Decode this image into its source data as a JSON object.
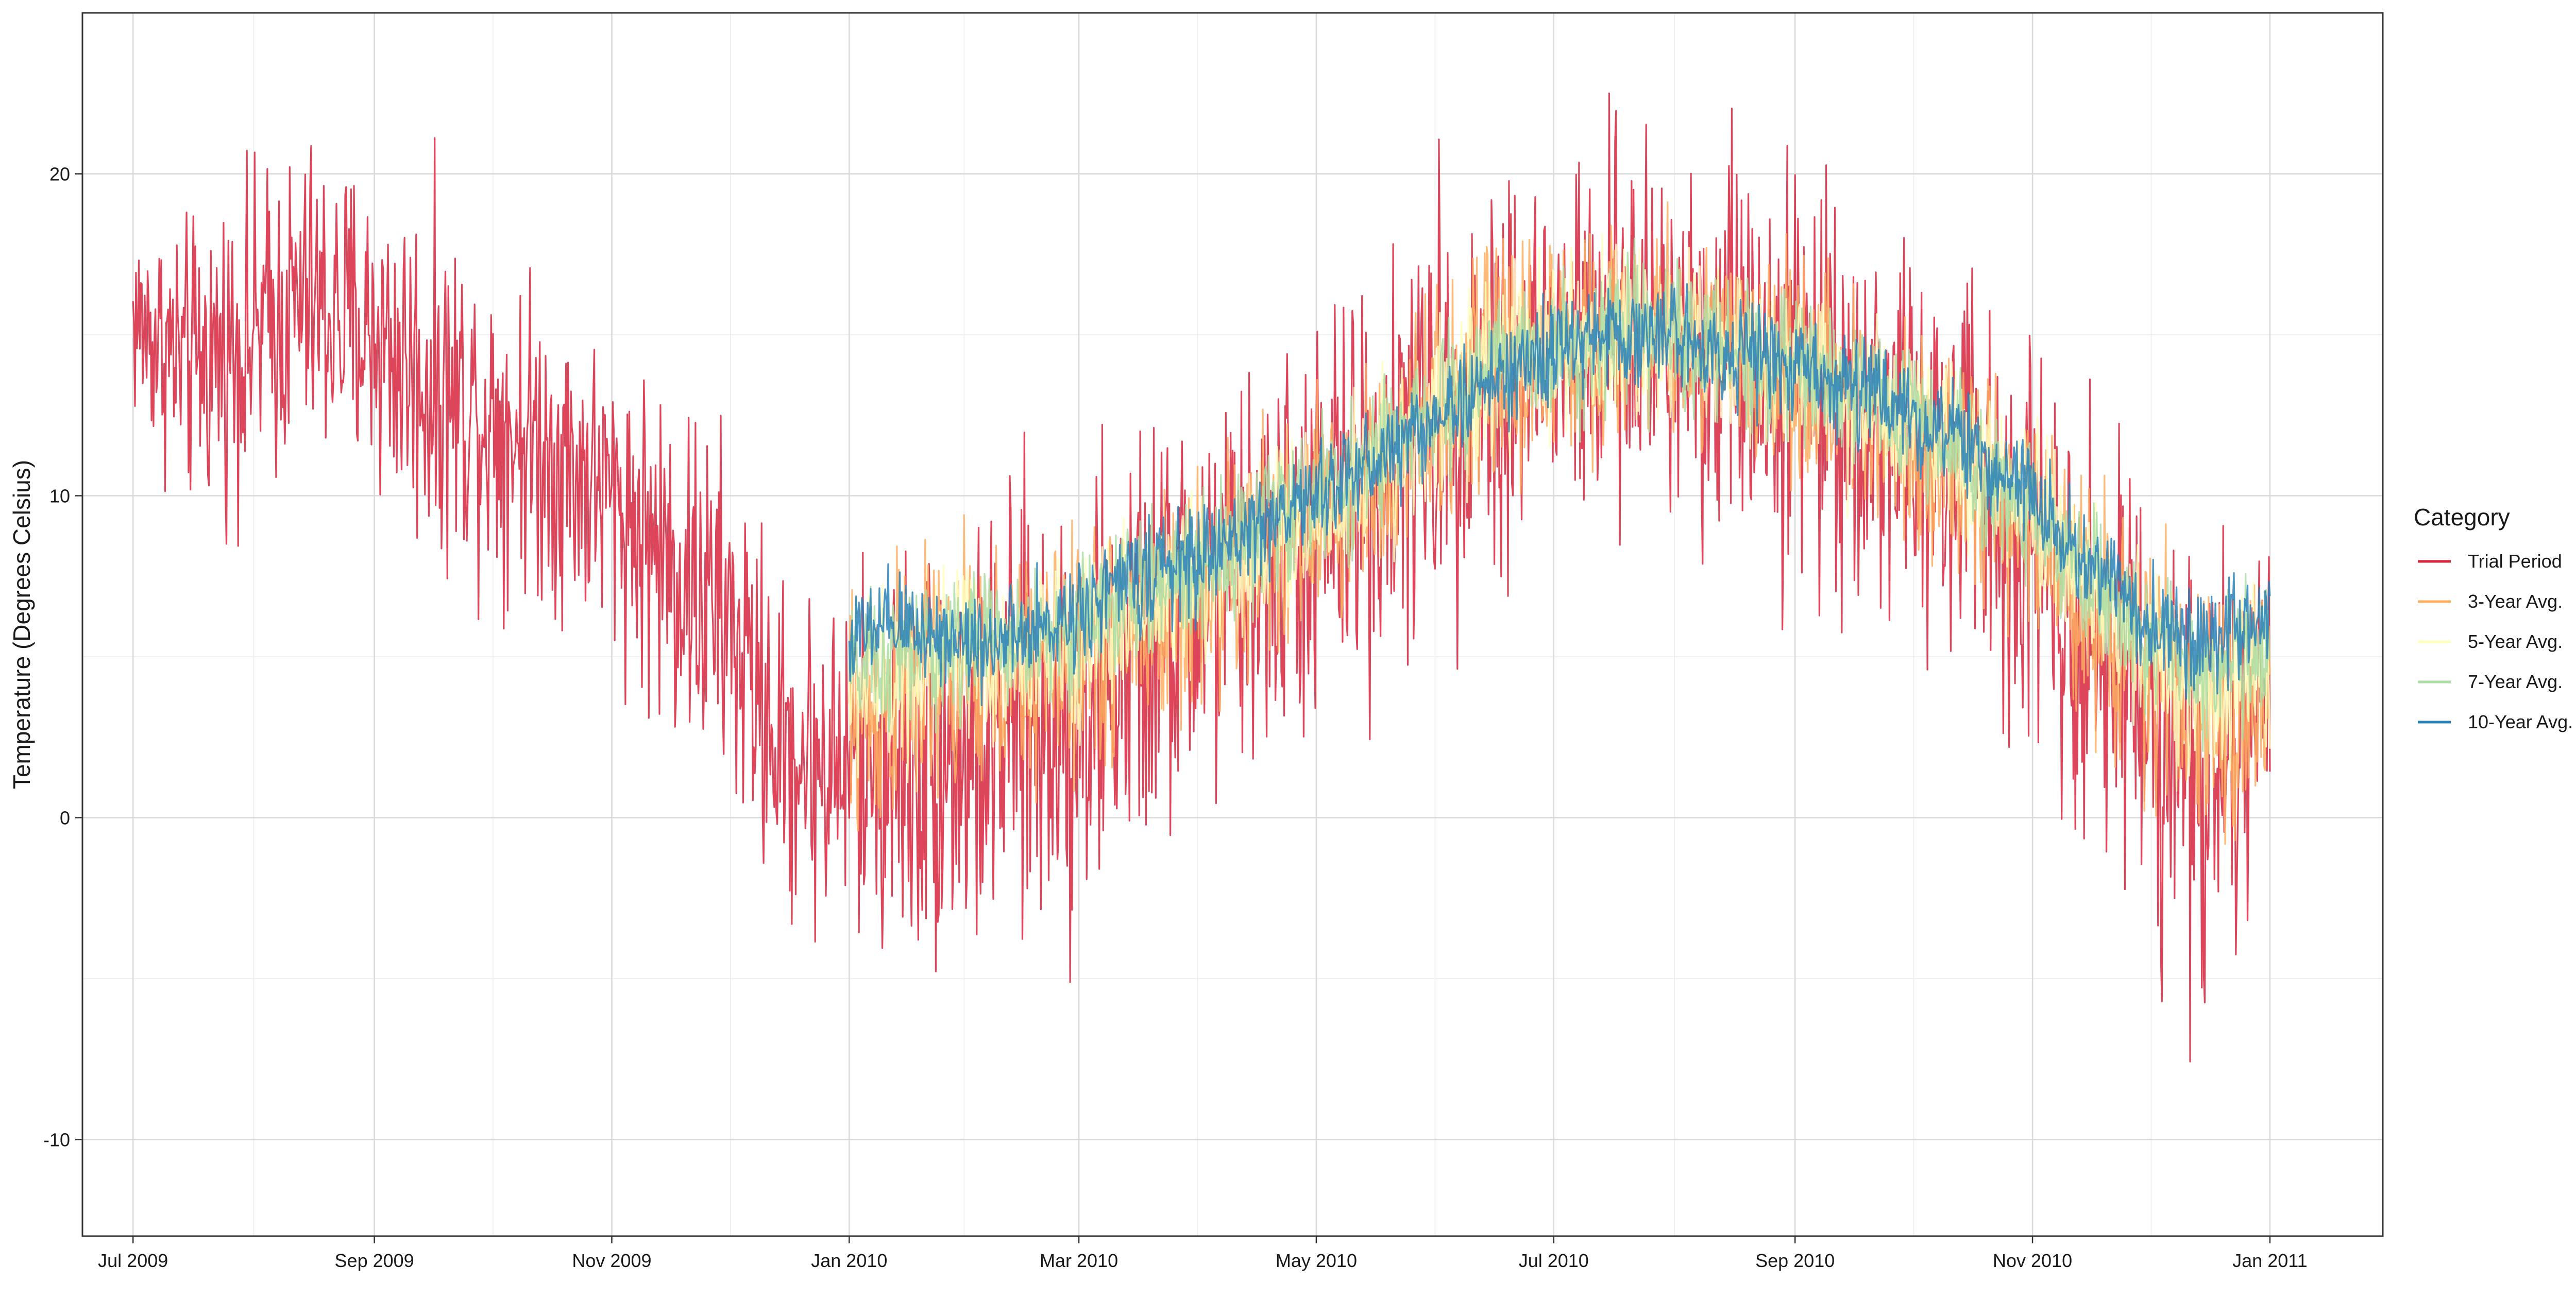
{
  "chart_data": {
    "type": "line",
    "title": "",
    "xlabel": "",
    "ylabel": "Temperature  (Degrees Celsius)",
    "x_range": [
      "2009-06-18",
      "2011-01-30"
    ],
    "ylim": [
      -13,
      25
    ],
    "y_ticks": [
      -10,
      0,
      10,
      20
    ],
    "x_ticks": [
      {
        "date": "2009-07-01",
        "label": "Jul 2009"
      },
      {
        "date": "2009-09-01",
        "label": "Sep 2009"
      },
      {
        "date": "2009-11-01",
        "label": "Nov 2009"
      },
      {
        "date": "2010-01-01",
        "label": "Jan 2010"
      },
      {
        "date": "2010-03-01",
        "label": "Mar 2010"
      },
      {
        "date": "2010-05-01",
        "label": "May 2010"
      },
      {
        "date": "2010-07-01",
        "label": "Jul 2010"
      },
      {
        "date": "2010-09-01",
        "label": "Sep 2010"
      },
      {
        "date": "2010-11-01",
        "label": "Nov 2010"
      },
      {
        "date": "2011-01-01",
        "label": "Jan 2011"
      }
    ],
    "grid": true,
    "legend": {
      "title": "Category",
      "position": "right"
    },
    "series": [
      {
        "name": "Trial Period",
        "color": "#D7263D",
        "x": [
          "2009-07-01",
          "2009-07-15",
          "2009-08-01",
          "2009-08-15",
          "2009-09-01",
          "2009-09-15",
          "2009-10-01",
          "2009-10-15",
          "2009-11-01",
          "2009-11-15",
          "2009-12-01",
          "2009-12-15",
          "2010-01-01",
          "2010-01-15",
          "2010-02-01",
          "2010-02-15",
          "2010-03-01",
          "2010-03-15",
          "2010-04-01",
          "2010-04-15",
          "2010-05-01",
          "2010-05-15",
          "2010-06-01",
          "2010-06-15",
          "2010-07-01",
          "2010-07-15",
          "2010-08-01",
          "2010-08-15",
          "2010-09-01",
          "2010-09-15",
          "2010-10-01",
          "2010-10-15",
          "2010-11-01",
          "2010-11-15",
          "2010-12-01",
          "2010-12-15",
          "2011-01-01"
        ],
        "center": [
          15.5,
          14,
          15,
          16,
          15,
          13.5,
          12.5,
          11.5,
          10,
          8,
          6,
          2,
          1.5,
          2,
          2,
          3,
          3.5,
          5,
          6.5,
          7.5,
          9,
          10.5,
          12.5,
          14,
          14.5,
          15,
          15,
          15,
          14,
          13,
          11.5,
          10.5,
          9,
          6,
          3.5,
          1,
          3
        ],
        "spread": [
          3,
          4,
          4.5,
          4.5,
          4.5,
          5,
          4.5,
          4.5,
          4,
          5,
          5,
          4.5,
          5,
          6,
          6,
          6.5,
          6.5,
          6,
          6,
          5.5,
          6,
          6,
          6,
          6,
          5.5,
          5.5,
          5.5,
          6,
          6,
          5.5,
          5.5,
          6,
          6,
          6,
          6,
          7,
          4
        ]
      },
      {
        "name": "3-Year Avg.",
        "color": "#FDAE61",
        "x": [
          "2010-01-01",
          "2010-01-15",
          "2010-02-01",
          "2010-02-15",
          "2010-03-01",
          "2010-03-15",
          "2010-04-01",
          "2010-04-15",
          "2010-05-01",
          "2010-05-15",
          "2010-06-01",
          "2010-06-15",
          "2010-07-01",
          "2010-07-15",
          "2010-08-01",
          "2010-08-15",
          "2010-09-01",
          "2010-09-15",
          "2010-10-01",
          "2010-10-15",
          "2010-11-01",
          "2010-11-15",
          "2010-12-01",
          "2010-12-15",
          "2011-01-01"
        ],
        "center": [
          3,
          4,
          4.5,
          4.5,
          5,
          6,
          7,
          8,
          9,
          10.5,
          12.5,
          14,
          14.5,
          15,
          15,
          14.5,
          14,
          13,
          12,
          10.5,
          9,
          7,
          4.5,
          3,
          4
        ],
        "spread": [
          4,
          4,
          3.5,
          3.5,
          3.5,
          3.5,
          3.5,
          3.5,
          3.5,
          3.5,
          3.5,
          3.5,
          3.5,
          3,
          3,
          3,
          3,
          3,
          3,
          3,
          3,
          3.5,
          3.5,
          4,
          3.5
        ]
      },
      {
        "name": "5-Year Avg.",
        "color": "#FFFFBF",
        "x": [
          "2010-01-01",
          "2010-01-15",
          "2010-02-01",
          "2010-02-15",
          "2010-03-01",
          "2010-03-15",
          "2010-04-01",
          "2010-04-15",
          "2010-05-01",
          "2010-05-15",
          "2010-06-01",
          "2010-06-15",
          "2010-07-01",
          "2010-07-15",
          "2010-08-01",
          "2010-08-15",
          "2010-09-01",
          "2010-09-15",
          "2010-10-01",
          "2010-10-15",
          "2010-11-01",
          "2010-11-15",
          "2010-12-01",
          "2010-12-15",
          "2011-01-01"
        ],
        "center": [
          4,
          4.5,
          5,
          5,
          5.5,
          6.5,
          7.5,
          8.5,
          9.5,
          11,
          12.5,
          14,
          14.5,
          15,
          15,
          14.5,
          14,
          13,
          12,
          11,
          9.5,
          7.5,
          5,
          4,
          5
        ],
        "spread": [
          2.5,
          2.5,
          2.5,
          2.5,
          2.5,
          2.5,
          2.5,
          2.5,
          2.5,
          2.5,
          2.5,
          2.5,
          2.5,
          2.5,
          2.5,
          2.5,
          2.5,
          2.5,
          2.5,
          2.5,
          2.5,
          2.5,
          2.5,
          2.5,
          2.5
        ]
      },
      {
        "name": "7-Year Avg.",
        "color": "#ABDDA4",
        "x": [
          "2010-01-01",
          "2010-01-15",
          "2010-02-01",
          "2010-02-15",
          "2010-03-01",
          "2010-03-15",
          "2010-04-01",
          "2010-04-15",
          "2010-05-01",
          "2010-05-15",
          "2010-06-01",
          "2010-06-15",
          "2010-07-01",
          "2010-07-15",
          "2010-08-01",
          "2010-08-15",
          "2010-09-01",
          "2010-09-15",
          "2010-10-01",
          "2010-10-15",
          "2010-11-01",
          "2010-11-15",
          "2010-12-01",
          "2010-12-15",
          "2011-01-01"
        ],
        "center": [
          4.5,
          5,
          5.5,
          5.5,
          6,
          7,
          8,
          9,
          10,
          11,
          12.5,
          14,
          14.5,
          15,
          15,
          14.5,
          14,
          13.5,
          12.5,
          11,
          9.5,
          7.5,
          5.5,
          4.5,
          5.5
        ],
        "spread": [
          2,
          2,
          2,
          2,
          2,
          2,
          2,
          2,
          2,
          2,
          2,
          2,
          2,
          2,
          2,
          2,
          2,
          2,
          2,
          2,
          2,
          2,
          2,
          2,
          2
        ]
      },
      {
        "name": "10-Year Avg.",
        "color": "#2B83BA",
        "x": [
          "2010-01-01",
          "2010-01-15",
          "2010-02-01",
          "2010-02-15",
          "2010-03-01",
          "2010-03-15",
          "2010-04-01",
          "2010-04-15",
          "2010-05-01",
          "2010-05-15",
          "2010-06-01",
          "2010-06-15",
          "2010-07-01",
          "2010-07-15",
          "2010-08-01",
          "2010-08-15",
          "2010-09-01",
          "2010-09-15",
          "2010-10-01",
          "2010-10-15",
          "2010-11-01",
          "2010-11-15",
          "2010-12-01",
          "2010-12-15",
          "2011-01-01"
        ],
        "center": [
          5.5,
          6,
          5.5,
          5.5,
          6.5,
          7.5,
          8,
          9,
          10,
          11,
          12.5,
          13.5,
          14.5,
          15,
          15,
          14.5,
          14,
          13.5,
          12.5,
          11.5,
          10,
          8,
          6,
          5.5,
          6
        ],
        "spread": [
          1.5,
          1.5,
          1.5,
          1.5,
          1.5,
          1.5,
          1.5,
          1.5,
          1.5,
          1.5,
          1.5,
          1.5,
          1.5,
          1.5,
          1.5,
          1.5,
          1.5,
          1.5,
          1.5,
          1.5,
          1.5,
          1.5,
          1.5,
          1.5,
          1.5
        ]
      }
    ]
  }
}
